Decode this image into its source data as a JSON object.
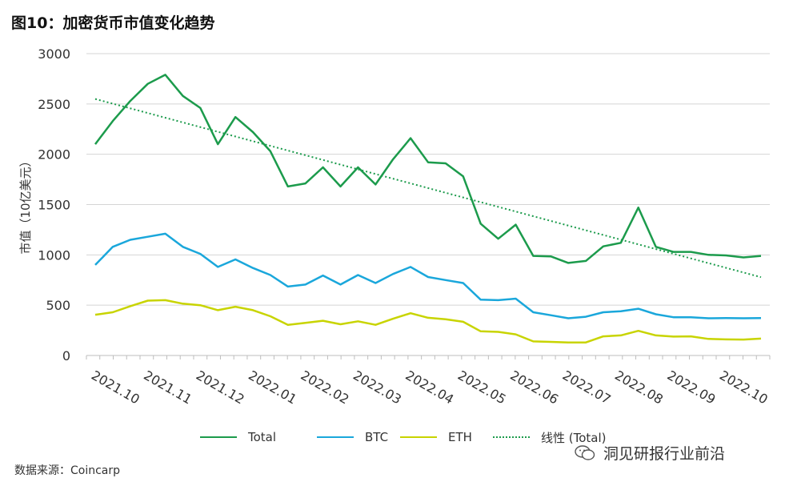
{
  "title": "图10：加密货币市值变化趋势",
  "source": "数据来源：Coincarp",
  "watermark": "洞见研报行业前沿",
  "chart_data": {
    "type": "line",
    "title": "图10：加密货币市值变化趋势",
    "xlabel": "",
    "ylabel": "市值（10亿美元）",
    "ylim": [
      0,
      3000
    ],
    "yticks": [
      0,
      500,
      1000,
      1500,
      2000,
      2500,
      3000
    ],
    "grid": true,
    "legend_position": "bottom",
    "x_tick_labels": [
      "2021.10",
      "2021.11",
      "2021.12",
      "2022.01",
      "2022.02",
      "2022.03",
      "2022.04",
      "2022.05",
      "2022.06",
      "2022.07",
      "2022.08",
      "2022.09",
      "2022.10"
    ],
    "x_count": 52,
    "series": [
      {
        "name": "Total",
        "color": "#1c9b4c",
        "style": "solid",
        "values": [
          2100,
          2330,
          2530,
          2700,
          2790,
          2580,
          2460,
          2100,
          2370,
          2220,
          2030,
          1680,
          1710,
          1870,
          1680,
          1870,
          1700,
          1950,
          2160,
          1920,
          1910,
          1780,
          1310,
          1160,
          1300,
          990,
          985,
          920,
          940,
          1085,
          1120,
          1470,
          1080,
          1030,
          1030,
          1000,
          995,
          975,
          990
        ]
      },
      {
        "name": "BTC",
        "color": "#1aa7db",
        "style": "solid",
        "values": [
          900,
          1080,
          1150,
          1180,
          1210,
          1080,
          1010,
          880,
          955,
          870,
          800,
          685,
          705,
          795,
          705,
          800,
          720,
          810,
          880,
          780,
          750,
          720,
          555,
          550,
          565,
          430,
          400,
          370,
          385,
          430,
          440,
          465,
          410,
          380,
          380,
          370,
          372,
          370,
          372
        ]
      },
      {
        "name": "ETH",
        "color": "#c8d400",
        "style": "solid",
        "values": [
          405,
          430,
          490,
          545,
          550,
          515,
          500,
          450,
          485,
          450,
          390,
          305,
          325,
          345,
          310,
          340,
          305,
          365,
          420,
          375,
          360,
          335,
          240,
          235,
          210,
          140,
          135,
          130,
          130,
          190,
          200,
          245,
          200,
          188,
          190,
          165,
          160,
          158,
          168
        ]
      },
      {
        "name": "线性 (Total)",
        "color": "#1c9b4c",
        "style": "dotted",
        "values": [
          2550,
          778
        ]
      }
    ]
  }
}
